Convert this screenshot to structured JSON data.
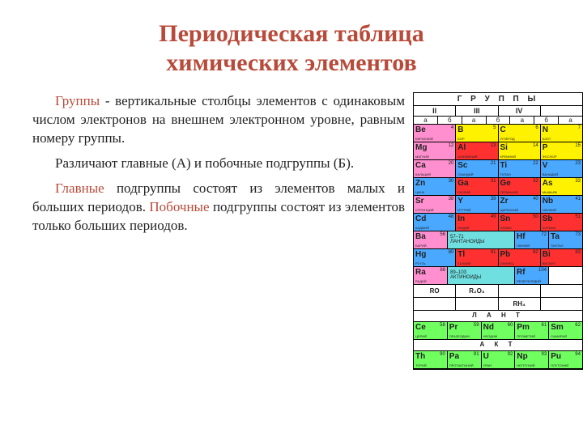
{
  "colors": {
    "title": "#b84a3a",
    "keyword": "#b84a3a",
    "text": "#222222",
    "yellow": "#fff200",
    "red": "#ff3030",
    "pink": "#ff8fcf",
    "blue": "#4aa8ff",
    "cyan": "#6fdfe0",
    "green": "#6fff5f",
    "white": "#ffffff",
    "gray": "#dddddd"
  },
  "title_line1": "Периодическая таблица",
  "title_line2": "химических элементов",
  "para1": {
    "kw": "Группы",
    "rest": " - вертикальные столбцы элементов с одинаковым числом электронов на внешнем электронном уровне, равным номеру группы."
  },
  "para2": "Различают главные (А) и побочные подгруппы (Б).",
  "para3": {
    "kw1": "Главные",
    "mid": " подгруппы состоят из элементов малых и больших периодов. ",
    "kw2": "Побочные",
    "rest": " подгруппы состоят из элементов только больших периодов."
  },
  "table": {
    "header": "Г Р У П П Ы",
    "groups": [
      "II",
      "III",
      "IV"
    ],
    "sub": [
      "а",
      "б",
      "а",
      "б",
      "а",
      "б",
      "а"
    ],
    "rows": [
      [
        {
          "sym": "Be",
          "num": "4",
          "nm": "БЕРИЛЛИЙ",
          "c": "pink"
        },
        {
          "sym": "B",
          "num": "5",
          "nm": "БОР",
          "c": "yellow"
        },
        {
          "sym": "C",
          "num": "6",
          "nm": "УГЛЕРОД",
          "c": "yellow"
        },
        {
          "sym": "N",
          "num": "7",
          "nm": "АЗОТ",
          "c": "yellow"
        }
      ],
      [
        {
          "sym": "Mg",
          "num": "12",
          "nm": "МАГНИЙ",
          "c": "pink"
        },
        {
          "sym": "Al",
          "num": "13",
          "nm": "АЛЮМИНИЙ",
          "c": "red"
        },
        {
          "sym": "Si",
          "num": "14",
          "nm": "КРЕМНИЙ",
          "c": "yellow"
        },
        {
          "sym": "P",
          "num": "15",
          "nm": "ФОСФОР",
          "c": "yellow"
        }
      ],
      [
        {
          "sym": "Ca",
          "num": "20",
          "nm": "КАЛЬЦИЙ",
          "c": "pink"
        },
        {
          "sym": "Sc",
          "num": "21",
          "nm": "СКАНДИЙ",
          "c": "blue",
          "off": true
        },
        {
          "sym": "Ti",
          "num": "22",
          "nm": "ТИТАН",
          "c": "blue",
          "off": true
        },
        {
          "sym": "V",
          "num": "23",
          "nm": "ВАНАДИЙ",
          "c": "blue",
          "off": true
        }
      ],
      [
        {
          "sym": "Zn",
          "num": "30",
          "nm": "ЦИНК",
          "c": "blue",
          "off": true
        },
        {
          "sym": "Ga",
          "num": "31",
          "nm": "ГАЛЛИЙ",
          "c": "red"
        },
        {
          "sym": "Ge",
          "num": "32",
          "nm": "ГЕРМАНИЙ",
          "c": "red"
        },
        {
          "sym": "As",
          "num": "33",
          "nm": "МЫШЬЯК",
          "c": "yellow"
        }
      ],
      [
        {
          "sym": "Sr",
          "num": "38",
          "nm": "СТРОНЦИЙ",
          "c": "pink"
        },
        {
          "sym": "Y",
          "num": "39",
          "nm": "ИТТРИЙ",
          "c": "blue",
          "off": true
        },
        {
          "sym": "Zr",
          "num": "40",
          "nm": "ЦИРКОНИЙ",
          "c": "blue",
          "off": true
        },
        {
          "sym": "Nb",
          "num": "41",
          "nm": "НИОБИЙ",
          "c": "blue",
          "off": true
        }
      ],
      [
        {
          "sym": "Cd",
          "num": "48",
          "nm": "КАДМИЙ",
          "c": "blue",
          "off": true
        },
        {
          "sym": "In",
          "num": "49",
          "nm": "ИНДИЙ",
          "c": "red"
        },
        {
          "sym": "Sn",
          "num": "50",
          "nm": "ОЛОВО",
          "c": "red"
        },
        {
          "sym": "Sb",
          "num": "51",
          "nm": "СУРЬМА",
          "c": "red"
        }
      ],
      [
        {
          "sym": "Ba",
          "num": "56",
          "nm": "БАРИЙ",
          "c": "pink"
        },
        {
          "span": 2,
          "txt": "57–71\nЛАНТАНОИДЫ",
          "c": "cyan"
        },
        {
          "sym": "Hf",
          "num": "72",
          "nm": "ГАФНИЙ",
          "c": "blue",
          "off": true
        },
        {
          "sym": "Ta",
          "num": "73",
          "nm": "ТАНТАЛ",
          "c": "blue",
          "off": true
        }
      ],
      [
        {
          "sym": "Hg",
          "num": "80",
          "nm": "РТУТЬ",
          "c": "blue",
          "off": true
        },
        {
          "sym": "Tl",
          "num": "81",
          "nm": "ТАЛЛИЙ",
          "c": "red"
        },
        {
          "sym": "Pb",
          "num": "82",
          "nm": "СВИНЕЦ",
          "c": "red"
        },
        {
          "sym": "Bi",
          "num": "83",
          "nm": "ВИСМУТ",
          "c": "red"
        }
      ],
      [
        {
          "sym": "Ra",
          "num": "88",
          "nm": "РАДИЙ",
          "c": "pink"
        },
        {
          "span": 2,
          "txt": "89–103\nАКТИНОИДЫ",
          "c": "cyan"
        },
        {
          "sym": "Rf",
          "num": "104",
          "nm": "РЕЗЕРФОРДИЙ",
          "c": "blue",
          "off": true
        },
        {
          "sym": "",
          "num": "",
          "nm": "",
          "c": "white"
        }
      ]
    ],
    "oxide_rows": [
      [
        "RO",
        "R₂O₃",
        ""
      ],
      [
        "",
        "",
        "RH₄"
      ]
    ],
    "band1": "Л А Н Т",
    "lanth": [
      {
        "sym": "Ce",
        "num": "58",
        "nm": "ЦЕРИЙ",
        "c": "green"
      },
      {
        "sym": "Pr",
        "num": "59",
        "nm": "ПРАЗЕОДИМ",
        "c": "green"
      },
      {
        "sym": "Nd",
        "num": "60",
        "nm": "НЕОДИМ",
        "c": "green"
      },
      {
        "sym": "Pm",
        "num": "61",
        "nm": "ПРОМЕТИЙ",
        "c": "green"
      },
      {
        "sym": "Sm",
        "num": "62",
        "nm": "САМАРИЙ",
        "c": "green"
      }
    ],
    "band2": "А К Т",
    "act": [
      {
        "sym": "Th",
        "num": "90",
        "nm": "ТОРИЙ",
        "c": "green"
      },
      {
        "sym": "Pa",
        "num": "91",
        "nm": "ПРОТАКТИНИЙ",
        "c": "green"
      },
      {
        "sym": "U",
        "num": "92",
        "nm": "УРАН",
        "c": "green"
      },
      {
        "sym": "Np",
        "num": "93",
        "nm": "НЕПТУНИЙ",
        "c": "green"
      },
      {
        "sym": "Pu",
        "num": "94",
        "nm": "ПЛУТОНИЙ",
        "c": "green"
      }
    ]
  }
}
